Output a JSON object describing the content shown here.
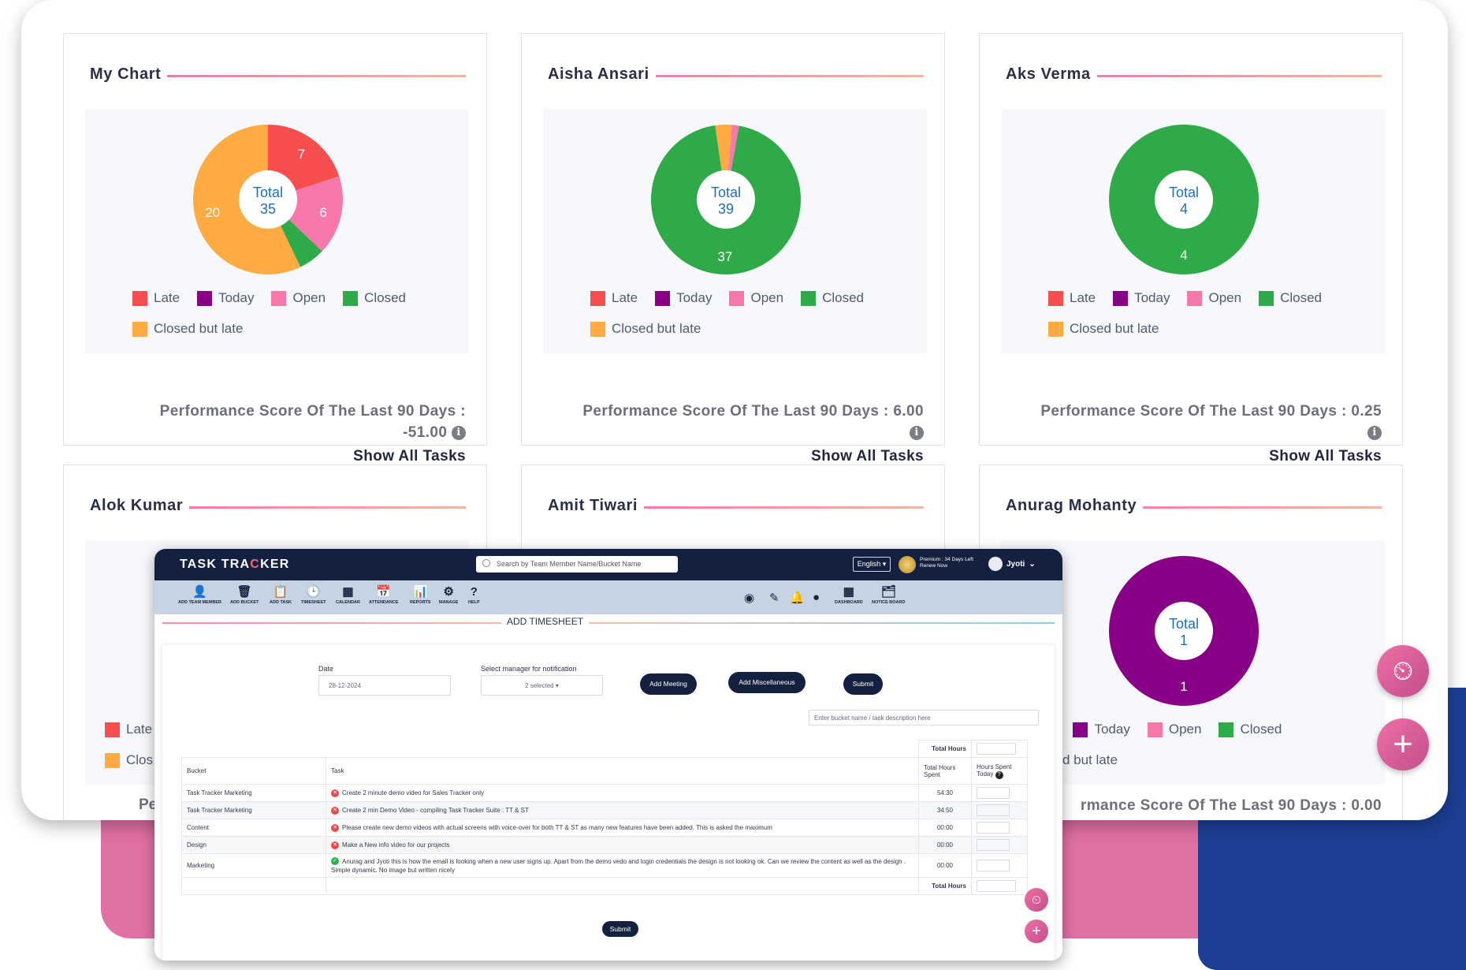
{
  "cards": [
    {
      "title": "My Chart",
      "total_label": "Total",
      "total": "35",
      "slices": [
        {
          "label": "7",
          "value": 7,
          "color": "#f64e4e"
        },
        {
          "label": "6",
          "value": 6,
          "color": "#f778ab"
        },
        {
          "label": "",
          "value": 2,
          "color": "#2eaa48"
        },
        {
          "label": "20",
          "value": 20,
          "color": "#fdab42"
        }
      ],
      "perf_label": "Performance Score Of The Last 90 Days :",
      "perf_value": "-51.00",
      "show_all": "Show All Tasks"
    },
    {
      "title": "Aisha Ansari",
      "total_label": "Total",
      "total": "39",
      "slices": [
        {
          "label": "",
          "value": 0.5,
          "color": "#fdab42"
        },
        {
          "label": "",
          "value": 0.6,
          "color": "#f778ab"
        },
        {
          "label": "37",
          "value": 37,
          "color": "#2eaa48"
        },
        {
          "label": "",
          "value": 0.9,
          "color": "#fdab42"
        }
      ],
      "perf_label": "Performance Score Of The Last 90 Days :",
      "perf_value": "6.00",
      "show_all": "Show All Tasks"
    },
    {
      "title": "Aks Verma",
      "total_label": "Total",
      "total": "4",
      "slices": [
        {
          "label": "4",
          "value": 4,
          "color": "#2eaa48"
        }
      ],
      "perf_label": "Performance Score Of The Last 90 Days :",
      "perf_value": "0.25",
      "show_all": "Show All Tasks"
    },
    {
      "title": "Alok Kumar",
      "total_label": "",
      "total": "",
      "slices": [],
      "perf_label": "Pe",
      "perf_value": "",
      "show_all": ""
    },
    {
      "title": "Amit Tiwari",
      "total_label": "",
      "total": "",
      "slices": [],
      "perf_label": "",
      "perf_value": "",
      "show_all": ""
    },
    {
      "title": "Anurag Mohanty",
      "total_label": "Total",
      "total": "1",
      "slices": [
        {
          "label": "1",
          "value": 1,
          "color": "#870086"
        }
      ],
      "perf_label": "rmance Score Of The Last 90 Days :",
      "perf_value": "0.00",
      "show_all": ""
    }
  ],
  "legend": {
    "late": "Late",
    "today": "Today",
    "open": "Open",
    "closed": "Closed",
    "closed_late": "Closed but late"
  },
  "legend_partial": {
    "late": "Late",
    "closed_late": "Clos",
    "today": "Today",
    "open": "Open",
    "closed": "Closed",
    "closed_late_tail": "sed but late",
    "late_tail": "e"
  },
  "legend_colors": {
    "late": "#f64e4e",
    "today": "#870086",
    "open": "#f778ab",
    "closed": "#2eaa48",
    "closed_late": "#fdab42"
  },
  "app": {
    "logo_a": "TASK TRA",
    "logo_b": "C",
    "logo_c": "KER",
    "search_placeholder": "Search by Team Member Name/Bucket Name",
    "language": "English ▾",
    "premium_line1": "Premium : 34 Days Left",
    "premium_line2": "Renew Now",
    "user": "Jyoti",
    "toolbar": [
      {
        "icon": "👤",
        "label": "ADD TEAM MEMBER"
      },
      {
        "icon": "🗑",
        "label": "ADD BUCKET"
      },
      {
        "icon": "📋",
        "label": "ADD TASK"
      },
      {
        "icon": "🕒",
        "label": "TIMESHEET"
      },
      {
        "icon": "▦",
        "label": "CALENDAR"
      },
      {
        "icon": "📅",
        "label": "ATTENDANCE"
      },
      {
        "icon": "📊",
        "label": "REPORTS"
      },
      {
        "icon": "⚙",
        "label": "MANAGE"
      },
      {
        "icon": "?",
        "label": "HELP"
      }
    ],
    "toolbar_right": [
      {
        "icon": "◉",
        "label": ""
      },
      {
        "icon": "✎",
        "label": ""
      },
      {
        "icon": "🔔",
        "label": ""
      },
      {
        "icon": "●",
        "label": ""
      },
      {
        "icon": "▦",
        "label": "DASHBOARD"
      },
      {
        "icon": "🗂",
        "label": "NOTICE BOARD"
      }
    ],
    "section_title": "ADD TIMESHEET",
    "date_label": "Date",
    "date_value": "28-12-2024",
    "manager_label": "Select manager for notification",
    "manager_value": "2 selected ▾",
    "btn_meeting": "Add Meeting",
    "btn_misc": "Add Miscellaneous",
    "btn_submit": "Submit",
    "filter_placeholder": "Enter bucket name / task description here",
    "total_hours": "Total Hours",
    "col_bucket": "Bucket",
    "col_task": "Task",
    "col_spent": "Total Hours Spent",
    "col_today": "Hours Spent Today",
    "rows": [
      {
        "bucket": "Task Tracker Marketing",
        "task": "Create 2 minute demo video for Sales Tracker only",
        "spent": "54:30",
        "ok": false
      },
      {
        "bucket": "Task Tracker Marketing",
        "task": "Create 2 min Demo Video - compiling Task Tracker Suite : TT & ST",
        "spent": "34:50",
        "ok": false
      },
      {
        "bucket": "Content",
        "task": "Please create new demo videos with actual screens with voice-over for both TT & ST as many new features have been added. This is asked the maximum",
        "spent": "00:00",
        "ok": false
      },
      {
        "bucket": "Design",
        "task": "Make a New info video for our projects",
        "spent": "00:00",
        "ok": false
      },
      {
        "bucket": "Marketing",
        "task": "Anurag and Jyoti this is how the email is looking when a new user signs up. Apart from the demo vedo and login credentials the design is not looking ok. Can we review the content as well as the design . Simple dynamic. No image but written nicely",
        "spent": "00:00",
        "ok": true
      }
    ],
    "submit_bottom": "Submit"
  }
}
